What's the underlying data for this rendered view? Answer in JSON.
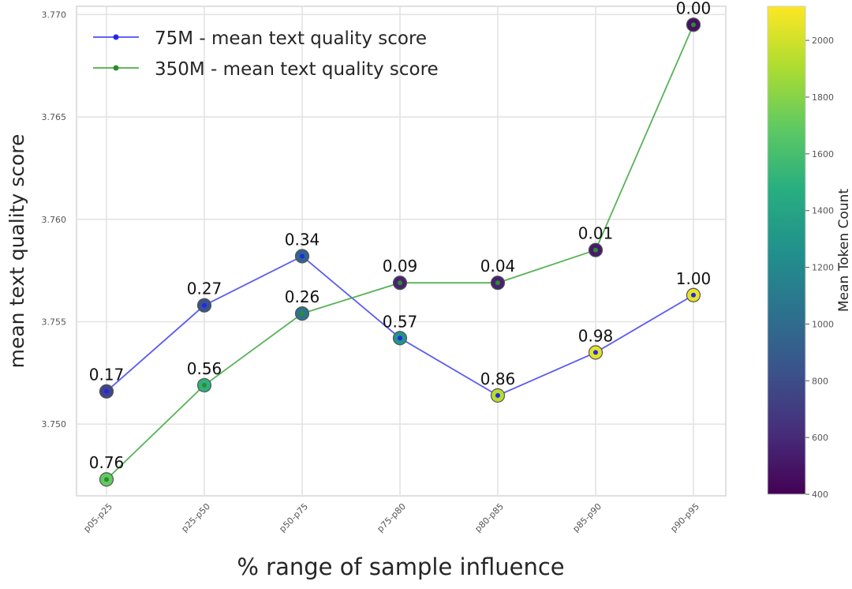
{
  "chart_data": {
    "type": "line",
    "xlabel": "% range of sample influence",
    "ylabel": "mean text quality score",
    "categories": [
      "p05-p25",
      "p25-p50",
      "p50-p75",
      "p75-p80",
      "p80-p85",
      "p85-p90",
      "p90-p95"
    ],
    "ylim": [
      3.7465,
      3.7704
    ],
    "yticks": [
      3.75,
      3.755,
      3.76,
      3.765,
      3.77
    ],
    "ytick_labels": [
      "3.750",
      "3.755",
      "3.760",
      "3.765",
      "3.770"
    ],
    "grid": true,
    "legend_position": "top-left",
    "series": [
      {
        "name": "75M - mean text quality score",
        "color": "#3f3ff0",
        "values": [
          3.7516,
          3.7558,
          3.7582,
          3.7542,
          3.7514,
          3.7535,
          3.7563
        ],
        "point_labels": [
          "0.17",
          "0.27",
          "0.34",
          "0.57",
          "0.86",
          "0.98",
          "1.00"
        ],
        "token_counts": [
          760,
          840,
          960,
          1280,
          1930,
          2050,
          2060
        ]
      },
      {
        "name": "350M - mean text quality score",
        "color": "#3aa63a",
        "values": [
          3.7473,
          3.7519,
          3.7554,
          3.7569,
          3.7569,
          3.7585,
          3.7695
        ],
        "point_labels": [
          "0.76",
          "0.56",
          "0.26",
          "0.09",
          "0.04",
          "0.01",
          "0.00"
        ],
        "token_counts": [
          1700,
          1500,
          1050,
          560,
          560,
          520,
          480
        ]
      }
    ],
    "colorbar": {
      "label": "Mean Token Count",
      "colormap": "viridis",
      "range": [
        400,
        2120
      ],
      "ticks": [
        400,
        600,
        800,
        1000,
        1200,
        1400,
        1600,
        1800,
        2000
      ],
      "tick_labels": [
        "400",
        "600",
        "800",
        "1000",
        "1200",
        "1400",
        "1600",
        "1800",
        "2000"
      ]
    }
  }
}
